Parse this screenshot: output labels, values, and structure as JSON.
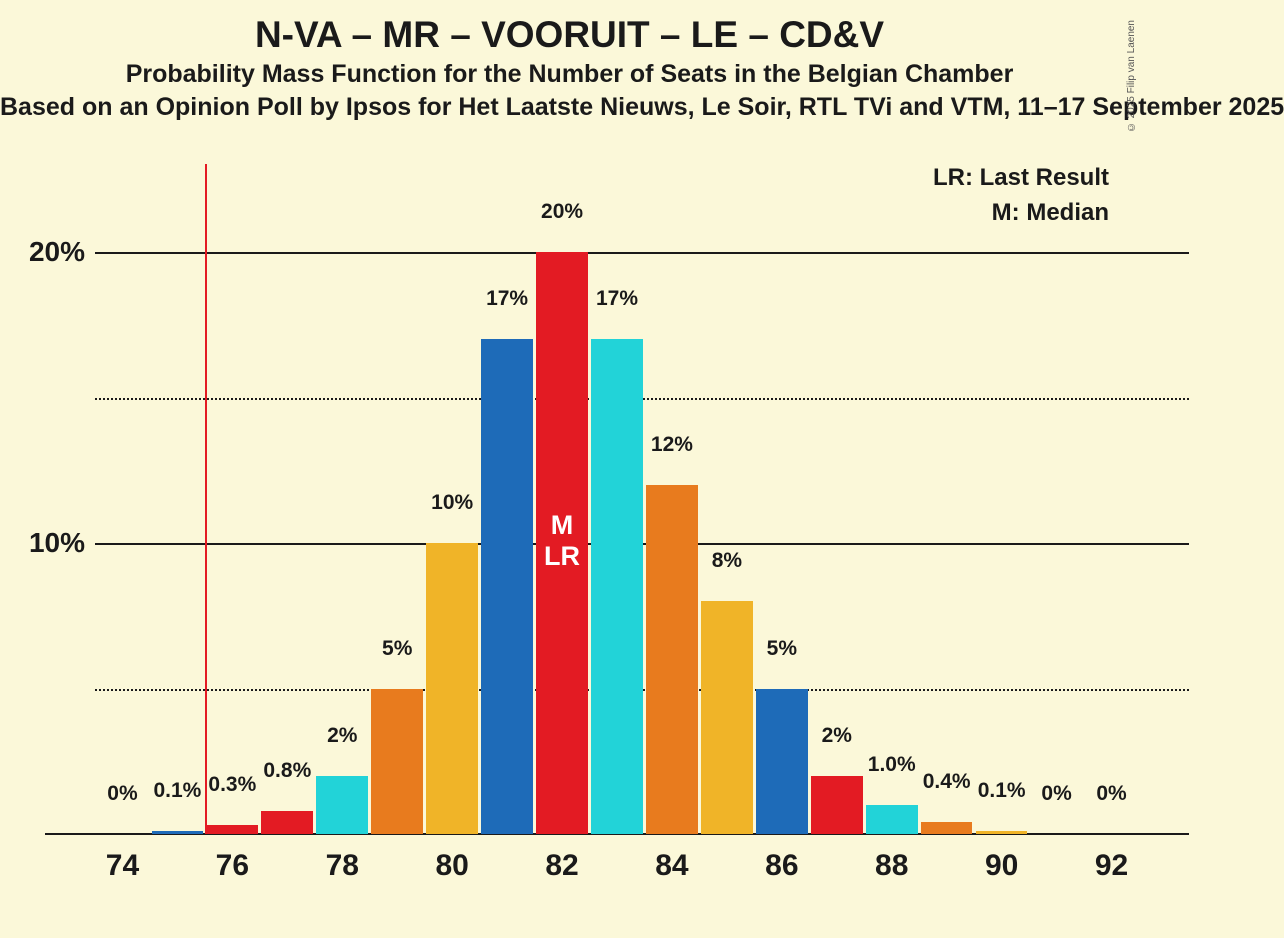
{
  "title": "N-VA – MR – VOORUIT – LE – CD&V",
  "title_fontsize": 37,
  "subtitle1": "Probability Mass Function for the Number of Seats in the Belgian Chamber",
  "subtitle2": "Based on an Opinion Poll by Ipsos for Het Laatste Nieuws, Le Soir, RTL TVi and VTM, 11–17 September 2025",
  "subtitle_fontsize": 25,
  "legend_lr": "LR: Last Result",
  "legend_m": "M: Median",
  "legend_fontsize": 24,
  "attribution": "© 2025 Filip van Laenen",
  "background_color": "#fbf8d9",
  "text_color": "#1a1a1a",
  "chart": {
    "type": "bar",
    "ylim": [
      0,
      22
    ],
    "ytick_labels": [
      "10%",
      "20%"
    ],
    "ytick_values": [
      10,
      20
    ],
    "ytick_fontsize": 28,
    "minor_gridline_values": [
      5,
      15
    ],
    "grid_color_solid": "#1a1a1a",
    "grid_color_dotted": "#1a1a1a",
    "x_categories": [
      74,
      75,
      76,
      77,
      78,
      79,
      80,
      81,
      82,
      83,
      84,
      85,
      86,
      87,
      88,
      89,
      90,
      91,
      92
    ],
    "x_tick_labels": [
      "74",
      "76",
      "78",
      "80",
      "82",
      "84",
      "86",
      "88",
      "90",
      "92"
    ],
    "x_tick_values": [
      74,
      76,
      78,
      80,
      82,
      84,
      86,
      88,
      90,
      92
    ],
    "xtick_fontsize": 30,
    "bar_width_ratio": 0.94,
    "bar_label_fontsize": 21,
    "bar_annotation_fontsize": 27,
    "vertical_line": {
      "x": 75.5,
      "color": "#e31b23"
    },
    "bars": [
      {
        "x": 74,
        "value": 0,
        "label": "0%",
        "color": "#f0b428"
      },
      {
        "x": 75,
        "value": 0.1,
        "label": "0.1%",
        "color": "#1e6bb8"
      },
      {
        "x": 76,
        "value": 0.3,
        "label": "0.3%",
        "color": "#e31b23"
      },
      {
        "x": 77,
        "value": 0.8,
        "label": "0.8%",
        "color": "#e31b23"
      },
      {
        "x": 78,
        "value": 2,
        "label": "2%",
        "color": "#22d3d8"
      },
      {
        "x": 79,
        "value": 5,
        "label": "5%",
        "color": "#e87b1e"
      },
      {
        "x": 80,
        "value": 10,
        "label": "10%",
        "color": "#f0b428"
      },
      {
        "x": 81,
        "value": 17,
        "label": "17%",
        "color": "#1e6bb8"
      },
      {
        "x": 82,
        "value": 20,
        "label": "20%",
        "color": "#e31b23",
        "annotation": "M\nLR"
      },
      {
        "x": 83,
        "value": 17,
        "label": "17%",
        "color": "#22d3d8"
      },
      {
        "x": 84,
        "value": 12,
        "label": "12%",
        "color": "#e87b1e"
      },
      {
        "x": 85,
        "value": 8,
        "label": "8%",
        "color": "#f0b428"
      },
      {
        "x": 86,
        "value": 5,
        "label": "5%",
        "color": "#1e6bb8"
      },
      {
        "x": 87,
        "value": 2,
        "label": "2%",
        "color": "#e31b23"
      },
      {
        "x": 88,
        "value": 1.0,
        "label": "1.0%",
        "color": "#22d3d8"
      },
      {
        "x": 89,
        "value": 0.4,
        "label": "0.4%",
        "color": "#e87b1e"
      },
      {
        "x": 90,
        "value": 0.1,
        "label": "0.1%",
        "color": "#f0b428"
      },
      {
        "x": 91,
        "value": 0,
        "label": "0%",
        "color": "#1e6bb8"
      },
      {
        "x": 92,
        "value": 0,
        "label": "0%",
        "color": "#e31b23"
      }
    ]
  }
}
